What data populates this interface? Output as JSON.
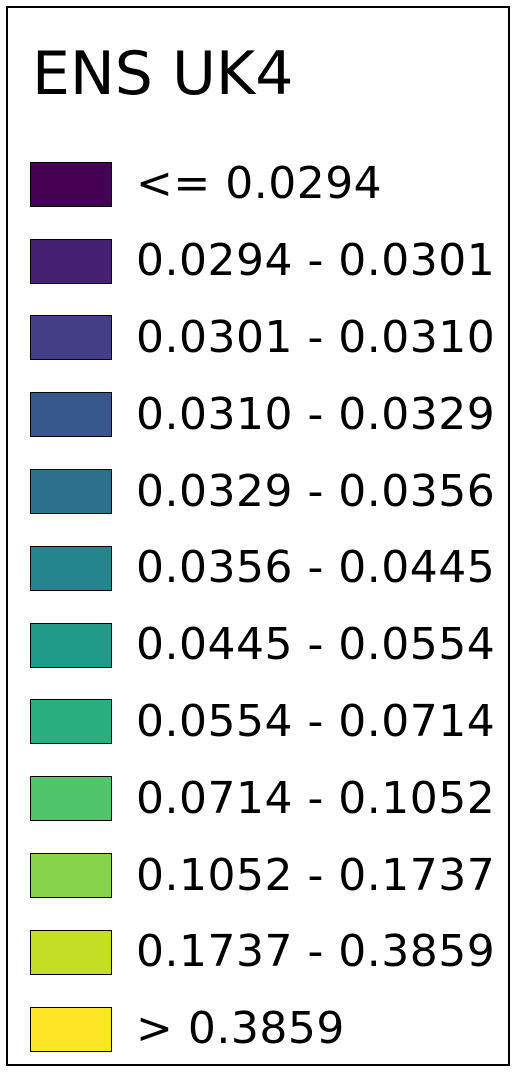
{
  "legend": {
    "title": "ENS UK4",
    "items": [
      {
        "label": "<= 0.0294",
        "color": "#440154"
      },
      {
        "label": "0.0294 - 0.0301",
        "color": "#482072"
      },
      {
        "label": "0.0301 - 0.0310",
        "color": "#433e85"
      },
      {
        "label": "0.0310 - 0.0329",
        "color": "#38588c"
      },
      {
        "label": "0.0329 - 0.0356",
        "color": "#2d708e"
      },
      {
        "label": "0.0356 - 0.0445",
        "color": "#25858e"
      },
      {
        "label": "0.0445 - 0.0554",
        "color": "#1e9b8a"
      },
      {
        "label": "0.0554 - 0.0714",
        "color": "#2ab07f"
      },
      {
        "label": "0.0714 - 0.1052",
        "color": "#51c56a"
      },
      {
        "label": "0.1052 - 0.1737",
        "color": "#86d549"
      },
      {
        "label": "0.1737 - 0.3859",
        "color": "#c2df23"
      },
      {
        "label": "> 0.3859",
        "color": "#fde725"
      }
    ]
  }
}
